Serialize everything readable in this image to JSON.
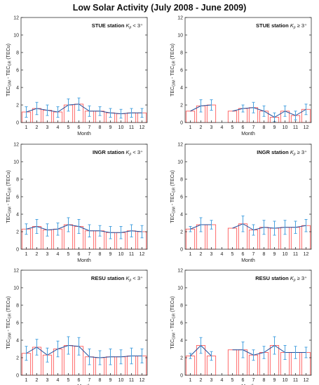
{
  "title": "Low Solar Activity (July 2008 - June 2009)",
  "colors": {
    "bar": "#ff5a5a",
    "line": "#1f4e9c",
    "error": "#4aa3e0",
    "axis": "#333333",
    "tick_text": "#222222"
  },
  "chart_data": [
    {
      "type": "bar",
      "station": "STUE station",
      "kp_label": "< 3⁺",
      "x": [
        1,
        2,
        3,
        4,
        5,
        6,
        7,
        8,
        9,
        10,
        11,
        12
      ],
      "values": [
        1.2,
        1.6,
        1.4,
        1.2,
        2.0,
        2.1,
        1.3,
        1.3,
        1.1,
        1.0,
        1.1,
        1.1
      ],
      "errors": [
        0.6,
        0.7,
        0.6,
        0.6,
        0.7,
        0.7,
        0.6,
        0.5,
        0.5,
        0.5,
        0.5,
        0.5
      ],
      "xlabel": "Month",
      "ylabel": "TEC_GIM - TEC_GR (TECu)",
      "ylim": [
        0,
        12
      ],
      "yticks": [
        0,
        2,
        4,
        6,
        8,
        10,
        12
      ],
      "xticks": [
        "1",
        "2",
        "3",
        "4",
        "5",
        "6",
        "7",
        "8",
        "9",
        "10",
        "11",
        "12"
      ],
      "grid": false
    },
    {
      "type": "bar",
      "station": "STUE station",
      "kp_label": "≥ 3⁺",
      "x": [
        1,
        2,
        3,
        4,
        5,
        6,
        7,
        8,
        9,
        10,
        11,
        12
      ],
      "values": [
        1.3,
        1.9,
        2.0,
        null,
        1.3,
        1.6,
        1.7,
        1.3,
        0.6,
        1.3,
        0.8,
        1.5
      ],
      "errors": [
        0.0,
        0.7,
        0.6,
        null,
        0.0,
        0.4,
        0.6,
        0.6,
        0.5,
        0.6,
        0.5,
        0.6
      ],
      "xlabel": "Month",
      "ylabel": "TEC_GIM - TEC_GR (TECu)",
      "ylim": [
        0,
        12
      ],
      "yticks": [
        0,
        2,
        4,
        6,
        8,
        10,
        12
      ],
      "xticks": [
        "1",
        "2",
        "3",
        "4",
        "5",
        "6",
        "7",
        "8",
        "9",
        "10",
        "11",
        "12"
      ],
      "grid": false
    },
    {
      "type": "bar",
      "station": "INGR station",
      "kp_label": "< 3⁺",
      "x": [
        1,
        2,
        3,
        4,
        5,
        6,
        7,
        8,
        9,
        10,
        11,
        12
      ],
      "values": [
        2.3,
        2.6,
        2.2,
        2.3,
        2.8,
        2.6,
        2.1,
        2.1,
        1.9,
        1.9,
        2.1,
        2.0
      ],
      "errors": [
        0.6,
        0.8,
        0.7,
        0.7,
        0.8,
        0.8,
        0.7,
        0.6,
        0.7,
        0.7,
        0.7,
        0.7
      ],
      "xlabel": "Month",
      "ylabel": "TEC_GIM - TEC_GR (TECu)",
      "ylim": [
        0,
        12
      ],
      "yticks": [
        0,
        2,
        4,
        6,
        8,
        10,
        12
      ],
      "xticks": [
        "1",
        "2",
        "3",
        "4",
        "5",
        "6",
        "7",
        "8",
        "9",
        "10",
        "11",
        "12"
      ],
      "grid": false
    },
    {
      "type": "bar",
      "station": "INGR station",
      "kp_label": "≥ 3⁺",
      "x": [
        1,
        2,
        3,
        4,
        5,
        6,
        7,
        8,
        9,
        10,
        11,
        12
      ],
      "values": [
        2.3,
        2.8,
        2.8,
        null,
        2.4,
        2.9,
        2.2,
        2.5,
        2.4,
        2.5,
        2.5,
        2.7
      ],
      "errors": [
        0.3,
        0.8,
        0.5,
        null,
        0.0,
        0.9,
        0.6,
        0.8,
        0.8,
        0.8,
        0.7,
        0.7
      ],
      "xlabel": "Month",
      "ylabel": "TEC_GIM - TEC_GR (TECu)",
      "ylim": [
        0,
        12
      ],
      "yticks": [
        0,
        2,
        4,
        6,
        8,
        10,
        12
      ],
      "xticks": [
        "1",
        "2",
        "3",
        "4",
        "5",
        "6",
        "7",
        "8",
        "9",
        "10",
        "11",
        "12"
      ],
      "grid": false
    },
    {
      "type": "bar",
      "station": "RESU station",
      "kp_label": "< 3⁺",
      "x": [
        1,
        2,
        3,
        4,
        5,
        6,
        7,
        8,
        9,
        10,
        11,
        12
      ],
      "values": [
        2.5,
        3.2,
        2.3,
        3.0,
        3.4,
        3.3,
        2.1,
        2.0,
        2.1,
        2.1,
        2.2,
        2.2
      ],
      "errors": [
        0.8,
        0.9,
        0.8,
        0.9,
        1.0,
        1.0,
        0.9,
        0.8,
        0.9,
        0.8,
        0.9,
        0.8
      ],
      "xlabel": "Month",
      "ylabel": "TEC_GIM - TEC_GR (TECu)",
      "ylim": [
        0,
        12
      ],
      "yticks": [
        0,
        2,
        4,
        6,
        8,
        10,
        12
      ],
      "xticks": [
        "1",
        "2",
        "3",
        "4",
        "5",
        "6",
        "7",
        "8",
        "9",
        "10",
        "11",
        "12"
      ],
      "grid": false
    },
    {
      "type": "bar",
      "station": "RESU station",
      "kp_label": "≥ 3⁺",
      "x": [
        1,
        2,
        3,
        4,
        5,
        6,
        7,
        8,
        9,
        10,
        11,
        12
      ],
      "values": [
        2.2,
        3.4,
        2.2,
        null,
        2.9,
        2.9,
        2.3,
        2.6,
        3.4,
        2.6,
        2.6,
        2.6
      ],
      "errors": [
        0.3,
        0.9,
        0.5,
        null,
        0.0,
        0.9,
        0.6,
        0.7,
        1.0,
        0.8,
        0.7,
        0.6
      ],
      "xlabel": "Month",
      "ylabel": "TEC_GIM - TEC_GR (TECu)",
      "ylim": [
        0,
        12
      ],
      "yticks": [
        0,
        2,
        4,
        6,
        8,
        10,
        12
      ],
      "xticks": [
        "1",
        "2",
        "3",
        "4",
        "5",
        "6",
        "7",
        "8",
        "9",
        "10",
        "11",
        "12"
      ],
      "grid": false
    }
  ]
}
